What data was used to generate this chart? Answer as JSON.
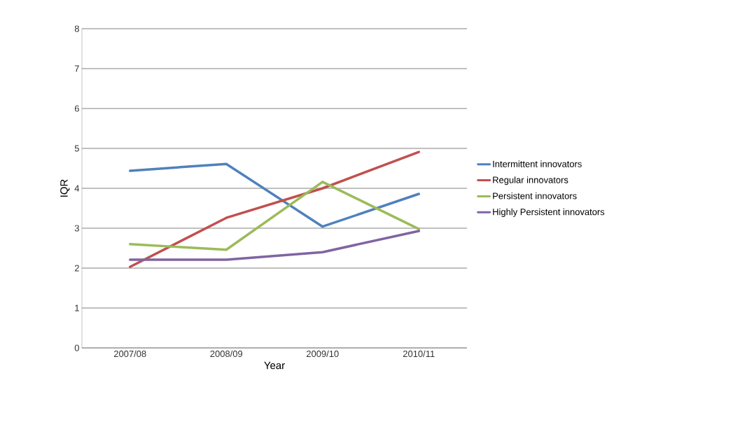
{
  "chart_data": {
    "type": "line",
    "xlabel": "Year",
    "ylabel": "IQR",
    "categories": [
      "2007/08",
      "2008/09",
      "2009/10",
      "2010/11"
    ],
    "series": [
      {
        "name": "Intermittent innovators",
        "color": "#4f81bd",
        "values": [
          4.44,
          4.61,
          3.04,
          3.86
        ]
      },
      {
        "name": "Regular innovators",
        "color": "#c0504d",
        "values": [
          2.03,
          3.26,
          4.0,
          4.91
        ]
      },
      {
        "name": "Persistent innovators",
        "color": "#9bbb59",
        "values": [
          2.6,
          2.46,
          4.16,
          2.98
        ]
      },
      {
        "name": "Highly Persistent innovators",
        "color": "#8064a2",
        "values": [
          2.21,
          2.21,
          2.4,
          2.93
        ]
      }
    ],
    "ylim": [
      0,
      8
    ],
    "yticks": [
      0,
      1,
      2,
      3,
      4,
      5,
      6,
      7,
      8
    ],
    "grid": "y",
    "legend": "right",
    "marker": "none",
    "line_style": "solid"
  }
}
